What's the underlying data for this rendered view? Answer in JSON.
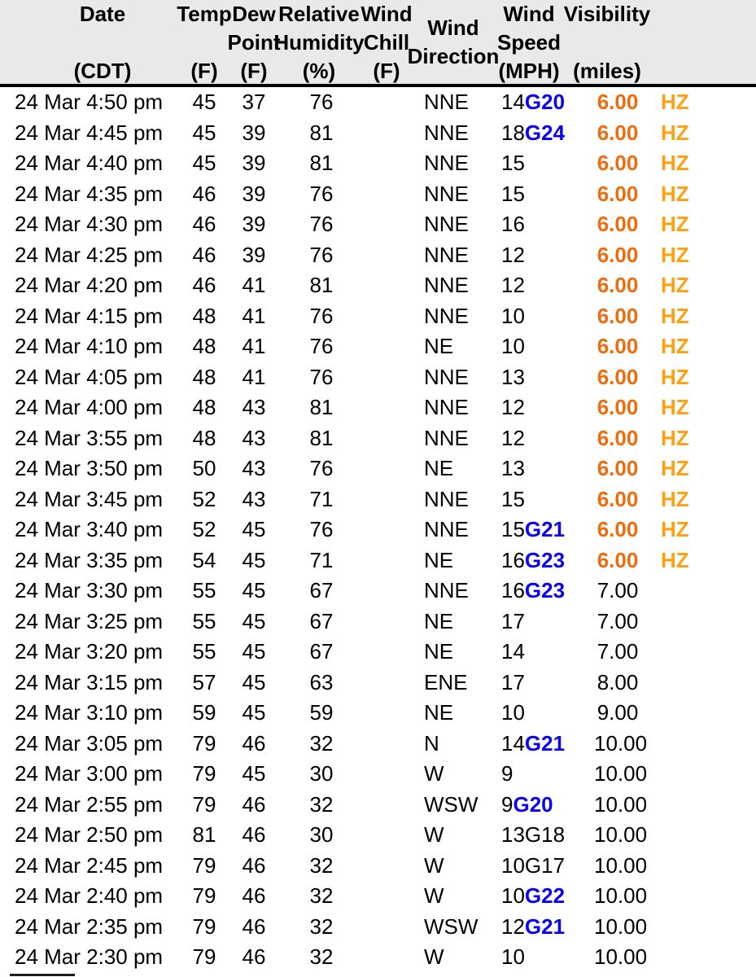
{
  "table": {
    "header": {
      "cols": [
        {
          "l1": "Date",
          "l2": "",
          "l3": "(CDT)"
        },
        {
          "l1": "Temp",
          "l2": "",
          "l3": "(F)"
        },
        {
          "l1": "Dew",
          "l2": "Point",
          "l3": "(F)"
        },
        {
          "l1": "Relative",
          "l2": "Humidity",
          "l3": "(%)"
        },
        {
          "l1": "Wind",
          "l2": "Chill",
          "l3": "(F)"
        },
        {
          "l1": "Wind",
          "l2": "Direction",
          "l3": ""
        },
        {
          "l1": "Wind",
          "l2": "Speed",
          "l3": "(MPH)"
        },
        {
          "l1": "Visibility",
          "l2": "",
          "l3": "(miles)"
        }
      ]
    },
    "rows": [
      {
        "date": "24 Mar 4:50 pm",
        "temp": "45",
        "dew": "37",
        "rh": "76",
        "chill": "",
        "dir": "NNE",
        "wind": "14",
        "gust": "G20",
        "gust_strong": true,
        "vis": "6.00",
        "vis_low": true,
        "cond": "HZ"
      },
      {
        "date": "24 Mar 4:45 pm",
        "temp": "45",
        "dew": "39",
        "rh": "81",
        "chill": "",
        "dir": "NNE",
        "wind": "18",
        "gust": "G24",
        "gust_strong": true,
        "vis": "6.00",
        "vis_low": true,
        "cond": "HZ"
      },
      {
        "date": "24 Mar 4:40 pm",
        "temp": "45",
        "dew": "39",
        "rh": "81",
        "chill": "",
        "dir": "NNE",
        "wind": "15",
        "gust": "",
        "gust_strong": false,
        "vis": "6.00",
        "vis_low": true,
        "cond": "HZ"
      },
      {
        "date": "24 Mar 4:35 pm",
        "temp": "46",
        "dew": "39",
        "rh": "76",
        "chill": "",
        "dir": "NNE",
        "wind": "15",
        "gust": "",
        "gust_strong": false,
        "vis": "6.00",
        "vis_low": true,
        "cond": "HZ"
      },
      {
        "date": "24 Mar 4:30 pm",
        "temp": "46",
        "dew": "39",
        "rh": "76",
        "chill": "",
        "dir": "NNE",
        "wind": "16",
        "gust": "",
        "gust_strong": false,
        "vis": "6.00",
        "vis_low": true,
        "cond": "HZ"
      },
      {
        "date": "24 Mar 4:25 pm",
        "temp": "46",
        "dew": "39",
        "rh": "76",
        "chill": "",
        "dir": "NNE",
        "wind": "12",
        "gust": "",
        "gust_strong": false,
        "vis": "6.00",
        "vis_low": true,
        "cond": "HZ"
      },
      {
        "date": "24 Mar 4:20 pm",
        "temp": "46",
        "dew": "41",
        "rh": "81",
        "chill": "",
        "dir": "NNE",
        "wind": "12",
        "gust": "",
        "gust_strong": false,
        "vis": "6.00",
        "vis_low": true,
        "cond": "HZ"
      },
      {
        "date": "24 Mar 4:15 pm",
        "temp": "48",
        "dew": "41",
        "rh": "76",
        "chill": "",
        "dir": "NNE",
        "wind": "10",
        "gust": "",
        "gust_strong": false,
        "vis": "6.00",
        "vis_low": true,
        "cond": "HZ"
      },
      {
        "date": "24 Mar 4:10 pm",
        "temp": "48",
        "dew": "41",
        "rh": "76",
        "chill": "",
        "dir": "NE",
        "wind": "10",
        "gust": "",
        "gust_strong": false,
        "vis": "6.00",
        "vis_low": true,
        "cond": "HZ"
      },
      {
        "date": "24 Mar 4:05 pm",
        "temp": "48",
        "dew": "41",
        "rh": "76",
        "chill": "",
        "dir": "NNE",
        "wind": "13",
        "gust": "",
        "gust_strong": false,
        "vis": "6.00",
        "vis_low": true,
        "cond": "HZ"
      },
      {
        "date": "24 Mar 4:00 pm",
        "temp": "48",
        "dew": "43",
        "rh": "81",
        "chill": "",
        "dir": "NNE",
        "wind": "12",
        "gust": "",
        "gust_strong": false,
        "vis": "6.00",
        "vis_low": true,
        "cond": "HZ"
      },
      {
        "date": "24 Mar 3:55 pm",
        "temp": "48",
        "dew": "43",
        "rh": "81",
        "chill": "",
        "dir": "NNE",
        "wind": "12",
        "gust": "",
        "gust_strong": false,
        "vis": "6.00",
        "vis_low": true,
        "cond": "HZ"
      },
      {
        "date": "24 Mar 3:50 pm",
        "temp": "50",
        "dew": "43",
        "rh": "76",
        "chill": "",
        "dir": "NE",
        "wind": "13",
        "gust": "",
        "gust_strong": false,
        "vis": "6.00",
        "vis_low": true,
        "cond": "HZ"
      },
      {
        "date": "24 Mar 3:45 pm",
        "temp": "52",
        "dew": "43",
        "rh": "71",
        "chill": "",
        "dir": "NNE",
        "wind": "15",
        "gust": "",
        "gust_strong": false,
        "vis": "6.00",
        "vis_low": true,
        "cond": "HZ"
      },
      {
        "date": "24 Mar 3:40 pm",
        "temp": "52",
        "dew": "45",
        "rh": "76",
        "chill": "",
        "dir": "NNE",
        "wind": "15",
        "gust": "G21",
        "gust_strong": true,
        "vis": "6.00",
        "vis_low": true,
        "cond": "HZ"
      },
      {
        "date": "24 Mar 3:35 pm",
        "temp": "54",
        "dew": "45",
        "rh": "71",
        "chill": "",
        "dir": "NE",
        "wind": "16",
        "gust": "G23",
        "gust_strong": true,
        "vis": "6.00",
        "vis_low": true,
        "cond": "HZ"
      },
      {
        "date": "24 Mar 3:30 pm",
        "temp": "55",
        "dew": "45",
        "rh": "67",
        "chill": "",
        "dir": "NNE",
        "wind": "16",
        "gust": "G23",
        "gust_strong": true,
        "vis": "7.00",
        "vis_low": false,
        "cond": ""
      },
      {
        "date": "24 Mar 3:25 pm",
        "temp": "55",
        "dew": "45",
        "rh": "67",
        "chill": "",
        "dir": "NE",
        "wind": "17",
        "gust": "",
        "gust_strong": false,
        "vis": "7.00",
        "vis_low": false,
        "cond": ""
      },
      {
        "date": "24 Mar 3:20 pm",
        "temp": "55",
        "dew": "45",
        "rh": "67",
        "chill": "",
        "dir": "NE",
        "wind": "14",
        "gust": "",
        "gust_strong": false,
        "vis": "7.00",
        "vis_low": false,
        "cond": ""
      },
      {
        "date": "24 Mar 3:15 pm",
        "temp": "57",
        "dew": "45",
        "rh": "63",
        "chill": "",
        "dir": "ENE",
        "wind": "17",
        "gust": "",
        "gust_strong": false,
        "vis": "8.00",
        "vis_low": false,
        "cond": ""
      },
      {
        "date": "24 Mar 3:10 pm",
        "temp": "59",
        "dew": "45",
        "rh": "59",
        "chill": "",
        "dir": "NE",
        "wind": "10",
        "gust": "",
        "gust_strong": false,
        "vis": "9.00",
        "vis_low": false,
        "cond": ""
      },
      {
        "date": "24 Mar 3:05 pm",
        "temp": "79",
        "dew": "46",
        "rh": "32",
        "chill": "",
        "dir": "N",
        "wind": "14",
        "gust": "G21",
        "gust_strong": true,
        "vis": "10.00",
        "vis_low": false,
        "cond": ""
      },
      {
        "date": "24 Mar 3:00 pm",
        "temp": "79",
        "dew": "45",
        "rh": "30",
        "chill": "",
        "dir": "W",
        "wind": "9",
        "gust": "",
        "gust_strong": false,
        "vis": "10.00",
        "vis_low": false,
        "cond": ""
      },
      {
        "date": "24 Mar 2:55 pm",
        "temp": "79",
        "dew": "46",
        "rh": "32",
        "chill": "",
        "dir": "WSW",
        "wind": "9",
        "gust": "G20",
        "gust_strong": true,
        "vis": "10.00",
        "vis_low": false,
        "cond": ""
      },
      {
        "date": "24 Mar 2:50 pm",
        "temp": "81",
        "dew": "46",
        "rh": "30",
        "chill": "",
        "dir": "W",
        "wind": "13",
        "gust": "G18",
        "gust_strong": false,
        "vis": "10.00",
        "vis_low": false,
        "cond": ""
      },
      {
        "date": "24 Mar 2:45 pm",
        "temp": "79",
        "dew": "46",
        "rh": "32",
        "chill": "",
        "dir": "W",
        "wind": "10",
        "gust": "G17",
        "gust_strong": false,
        "vis": "10.00",
        "vis_low": false,
        "cond": ""
      },
      {
        "date": "24 Mar 2:40 pm",
        "temp": "79",
        "dew": "46",
        "rh": "32",
        "chill": "",
        "dir": "W",
        "wind": "10",
        "gust": "G22",
        "gust_strong": true,
        "vis": "10.00",
        "vis_low": false,
        "cond": ""
      },
      {
        "date": "24 Mar 2:35 pm",
        "temp": "79",
        "dew": "46",
        "rh": "32",
        "chill": "",
        "dir": "WSW",
        "wind": "12",
        "gust": "G21",
        "gust_strong": true,
        "vis": "10.00",
        "vis_low": false,
        "cond": ""
      },
      {
        "date": "24 Mar 2:30 pm",
        "temp": "79",
        "dew": "46",
        "rh": "32",
        "chill": "",
        "dir": "W",
        "wind": "10",
        "gust": "",
        "gust_strong": false,
        "vis": "10.00",
        "vis_low": false,
        "cond": ""
      }
    ]
  },
  "colors": {
    "gust_blue": "#0a00f0",
    "visibility_low_orange": "#ee6c0c",
    "condition_orange": "#ffa010",
    "header_background": "#e9e9e9"
  }
}
